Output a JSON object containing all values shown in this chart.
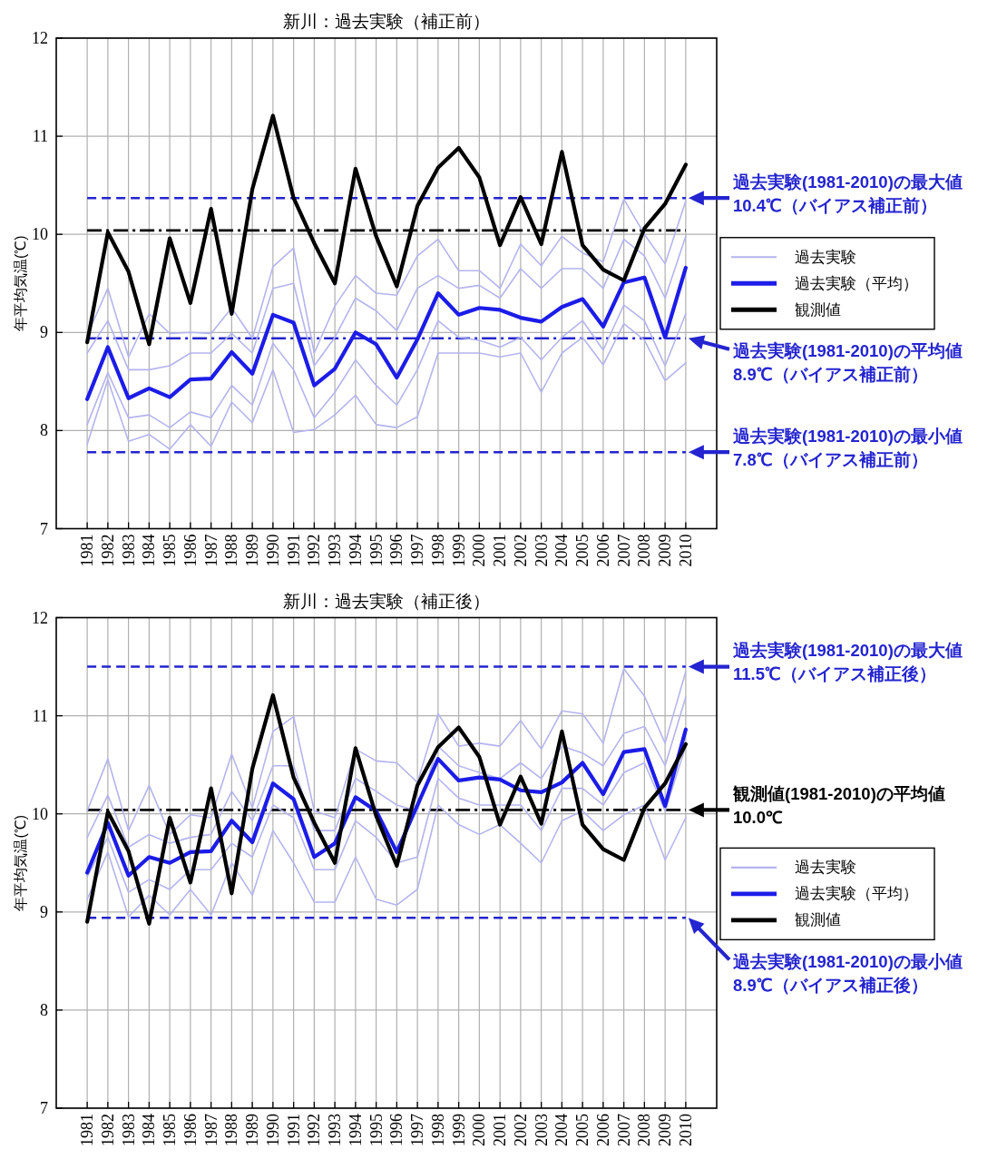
{
  "chart_data": [
    {
      "type": "line",
      "title": "新川：過去実験（補正前）",
      "ylabel": "年平均気温(℃)",
      "categories": [
        "1981",
        "1982",
        "1983",
        "1984",
        "1985",
        "1986",
        "1987",
        "1988",
        "1989",
        "1990",
        "1991",
        "1992",
        "1993",
        "1994",
        "1995",
        "1996",
        "1997",
        "1998",
        "1999",
        "2000",
        "2001",
        "2002",
        "2003",
        "2004",
        "2005",
        "2006",
        "2007",
        "2008",
        "2009",
        "2010"
      ],
      "ylim": [
        7,
        12
      ],
      "yticks": [
        7,
        8,
        9,
        10,
        11,
        12
      ],
      "grid": true,
      "legend": "right",
      "series": [
        {
          "name": "過去実験",
          "color": "#b4b4ee",
          "values": [
            8.97,
            9.45,
            8.75,
            9.19,
            8.99,
            9.0,
            8.99,
            9.25,
            8.94,
            9.67,
            9.86,
            8.79,
            9.27,
            9.58,
            9.4,
            9.38,
            9.78,
            9.95,
            9.63,
            9.63,
            9.45,
            9.9,
            9.68,
            9.98,
            9.81,
            9.72,
            10.36,
            10.0,
            9.7,
            10.34
          ]
        },
        {
          "color": "#b4b4ee",
          "values": [
            8.79,
            9.12,
            8.62,
            8.62,
            8.66,
            8.79,
            8.79,
            8.99,
            8.79,
            9.45,
            9.5,
            8.66,
            8.95,
            9.35,
            9.22,
            9.02,
            9.45,
            9.58,
            9.45,
            9.48,
            9.35,
            9.65,
            9.45,
            9.65,
            9.65,
            9.45,
            9.95,
            9.78,
            9.35,
            9.98
          ]
        },
        {
          "color": "#b4b4ee",
          "values": [
            8.06,
            8.59,
            8.13,
            8.16,
            8.03,
            8.19,
            8.13,
            8.46,
            8.26,
            8.89,
            8.62,
            8.13,
            8.39,
            8.72,
            8.46,
            8.26,
            8.62,
            9.12,
            8.95,
            8.92,
            8.85,
            8.95,
            8.72,
            8.95,
            9.12,
            8.82,
            9.28,
            9.12,
            8.66,
            9.19
          ]
        },
        {
          "color": "#b4b4ee",
          "values": [
            7.86,
            8.52,
            7.89,
            7.96,
            7.81,
            8.06,
            7.84,
            8.29,
            8.08,
            8.62,
            7.98,
            8.01,
            8.16,
            8.36,
            8.06,
            8.03,
            8.14,
            8.79,
            8.79,
            8.79,
            8.75,
            8.79,
            8.39,
            8.79,
            8.95,
            8.67,
            9.09,
            8.92,
            8.51,
            8.69
          ]
        },
        {
          "name": "過去実験（平均）",
          "color": "#1c1ce8",
          "values": [
            8.32,
            8.85,
            8.33,
            8.43,
            8.34,
            8.52,
            8.53,
            8.8,
            8.58,
            9.18,
            9.1,
            8.46,
            8.63,
            9.0,
            8.88,
            8.54,
            8.93,
            9.4,
            9.18,
            9.25,
            9.23,
            9.15,
            9.11,
            9.26,
            9.34,
            9.06,
            9.51,
            9.56,
            8.95,
            9.66
          ]
        },
        {
          "name": "観測値",
          "color": "#000000",
          "values": [
            8.9,
            10.02,
            9.62,
            8.88,
            9.96,
            9.3,
            10.26,
            9.19,
            10.46,
            11.21,
            10.37,
            9.91,
            9.5,
            10.67,
            9.98,
            9.47,
            10.29,
            10.68,
            10.88,
            10.58,
            9.89,
            10.38,
            9.9,
            10.84,
            9.89,
            9.64,
            9.53,
            10.06,
            10.31,
            10.71
          ]
        }
      ],
      "ref_lines": [
        {
          "axis": "y",
          "value": 10.37,
          "color": "#2424d0",
          "line_style": "dashed"
        },
        {
          "axis": "y",
          "value": 10.04,
          "color": "#000000",
          "line_style": "dashdot"
        },
        {
          "axis": "y",
          "value": 8.94,
          "color": "#2424d0",
          "line_style": "dashdot"
        },
        {
          "axis": "y",
          "value": 7.78,
          "color": "#2424d0",
          "line_style": "dashed"
        }
      ],
      "annotations": [
        {
          "text": "過去実験(1981-2010)の最大値\n10.4℃（バイアス補正前）",
          "x": "2010",
          "y": 10.37
        },
        {
          "text": "過去実験(1981-2010)の平均値\n8.9℃（バイアス補正前）",
          "x": "2010",
          "y": 8.94
        },
        {
          "text": "過去実験(1981-2010)の最小値\n7.8℃（バイアス補正前）",
          "x": "2010",
          "y": 7.78
        }
      ]
    },
    {
      "type": "line",
      "title": "新川：過去実験（補正後）",
      "ylabel": "年平均気温(℃)",
      "categories": [
        "1981",
        "1982",
        "1983",
        "1984",
        "1985",
        "1986",
        "1987",
        "1988",
        "1989",
        "1990",
        "1991",
        "1992",
        "1993",
        "1994",
        "1995",
        "1996",
        "1997",
        "1998",
        "1999",
        "2000",
        "2001",
        "2002",
        "2003",
        "2004",
        "2005",
        "2006",
        "2007",
        "2008",
        "2009",
        "2010"
      ],
      "ylim": [
        7,
        12
      ],
      "yticks": [
        7,
        8,
        9,
        10,
        11,
        12
      ],
      "grid": true,
      "legend": "right",
      "series": [
        {
          "name": "過去実験",
          "color": "#b4b4ee",
          "values": [
            10.03,
            10.56,
            9.83,
            10.29,
            9.79,
            9.99,
            9.96,
            10.61,
            10.06,
            10.84,
            10.99,
            10.03,
            9.96,
            10.66,
            10.54,
            10.52,
            10.32,
            11.02,
            10.69,
            10.72,
            10.69,
            10.95,
            10.66,
            11.05,
            11.02,
            10.72,
            11.48,
            11.2,
            10.72,
            11.45
          ]
        },
        {
          "color": "#b4b4ee",
          "values": [
            9.76,
            10.19,
            9.66,
            9.79,
            9.7,
            9.76,
            9.79,
            10.23,
            9.93,
            10.49,
            10.49,
            9.83,
            9.83,
            10.36,
            10.23,
            10.09,
            10.03,
            10.69,
            10.49,
            10.42,
            10.36,
            10.52,
            10.36,
            10.69,
            10.62,
            10.49,
            10.82,
            10.89,
            10.49,
            11.19
          ]
        },
        {
          "color": "#b4b4ee",
          "values": [
            9.36,
            9.76,
            9.2,
            9.33,
            9.23,
            9.43,
            9.43,
            9.7,
            9.56,
            10.09,
            9.96,
            9.43,
            9.43,
            9.93,
            9.76,
            9.5,
            9.56,
            10.36,
            10.16,
            10.09,
            10.09,
            10.09,
            9.83,
            10.26,
            10.26,
            10.09,
            10.42,
            10.52,
            10.03,
            10.69
          ]
        },
        {
          "color": "#b4b4ee",
          "values": [
            9.13,
            9.61,
            8.95,
            9.17,
            8.97,
            9.23,
            8.97,
            9.5,
            9.17,
            9.83,
            9.5,
            9.1,
            9.1,
            9.56,
            9.13,
            9.07,
            9.23,
            10.09,
            9.89,
            9.79,
            9.89,
            9.7,
            9.5,
            9.93,
            10.03,
            9.83,
            9.99,
            10.09,
            9.53,
            9.96
          ]
        },
        {
          "name": "過去実験（平均）",
          "color": "#1c1ce8",
          "values": [
            9.4,
            9.91,
            9.37,
            9.56,
            9.5,
            9.61,
            9.62,
            9.93,
            9.71,
            10.31,
            10.15,
            9.56,
            9.7,
            10.17,
            10.03,
            9.61,
            10.09,
            10.56,
            10.34,
            10.37,
            10.35,
            10.24,
            10.22,
            10.32,
            10.52,
            10.2,
            10.63,
            10.66,
            10.08,
            10.86
          ]
        },
        {
          "name": "観測値",
          "color": "#000000",
          "values": [
            8.9,
            10.02,
            9.62,
            8.88,
            9.96,
            9.3,
            10.26,
            9.19,
            10.46,
            11.21,
            10.37,
            9.91,
            9.5,
            10.67,
            9.98,
            9.47,
            10.29,
            10.68,
            10.88,
            10.58,
            9.89,
            10.38,
            9.9,
            10.84,
            9.89,
            9.64,
            9.53,
            10.06,
            10.31,
            10.71
          ]
        }
      ],
      "ref_lines": [
        {
          "axis": "y",
          "value": 11.5,
          "color": "#2424d0",
          "line_style": "dashed"
        },
        {
          "axis": "y",
          "value": 10.04,
          "color": "#000000",
          "line_style": "dashdot"
        },
        {
          "axis": "y",
          "value": 8.94,
          "color": "#2424d0",
          "line_style": "dashed"
        }
      ],
      "annotations": [
        {
          "text": "過去実験(1981-2010)の最大値\n11.5℃（バイアス補正後）",
          "x": "2010",
          "y": 11.5
        },
        {
          "text": "観測値(1981-2010)の平均値\n10.0℃",
          "x": "2010",
          "y": 10.04
        },
        {
          "text": "過去実験(1981-2010)の最小値\n8.9℃（バイアス補正後）",
          "x": "2010",
          "y": 8.94
        }
      ]
    }
  ]
}
